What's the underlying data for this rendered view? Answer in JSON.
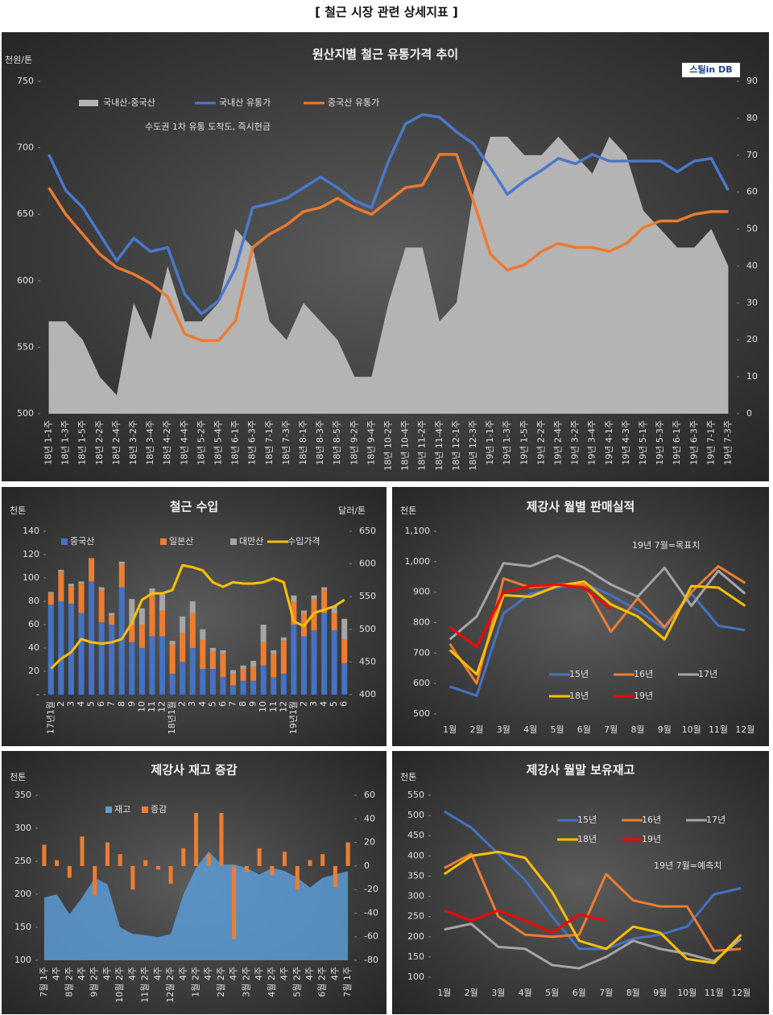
{
  "page_title": "[ 철근 시장 관련 상세지표 ]",
  "chart_data": [
    {
      "type": "combo",
      "title": "원산지별 철근 유통가격 추이",
      "y_label": "천원/톤",
      "annotation": "수도권 1차 유통 도착도, 즉시현금",
      "source_logo": "스틸in DB",
      "categories": [
        "18년 1-1주",
        "18년 1-3주",
        "18년 1-5주",
        "18년 2-2주",
        "18년 2-4주",
        "18년 3-2주",
        "18년 3-4주",
        "18년 4-2주",
        "18년 4-4주",
        "18년 5-2주",
        "18년 5-4주",
        "18년 6-1주",
        "18년 6-3주",
        "18년 7-1주",
        "18년 7-3주",
        "18년 8-1주",
        "18년 8-3주",
        "18년 8-5주",
        "18년 9-2주",
        "18년 9-4주",
        "18년 10-2주",
        "18년 10-4주",
        "18년 11-2주",
        "18년 11-4주",
        "18년 12-1주",
        "18년 12-3주",
        "19년 1-1주",
        "19년 1-3주",
        "19년 1-5주",
        "19년 2-2주",
        "19년 2-4주",
        "19년 3-2주",
        "19년 3-4주",
        "19년 4-1주",
        "19년 4-3주",
        "19년 5-1주",
        "19년 5-3주",
        "19년 6-1주",
        "19년 6-3주",
        "19년 7-1주",
        "19년 7-3주"
      ],
      "series": [
        {
          "name": "국내산-중국산",
          "kind": "area",
          "axis": "y2",
          "color": "#b4b4b4",
          "values": [
            25,
            25,
            20,
            10,
            5,
            30,
            20,
            40,
            25,
            25,
            30,
            50,
            45,
            25,
            20,
            30,
            25,
            20,
            10,
            10,
            30,
            45,
            45,
            25,
            30,
            60,
            75,
            75,
            70,
            70,
            75,
            70,
            65,
            75,
            70,
            55,
            50,
            45,
            45,
            50,
            40
          ]
        },
        {
          "name": "국내산 유통가",
          "kind": "line",
          "color": "#4a78cc",
          "values": [
            695,
            668,
            655,
            635,
            615,
            632,
            622,
            625,
            590,
            575,
            585,
            610,
            655,
            658,
            662,
            670,
            678,
            670,
            660,
            655,
            690,
            718,
            725,
            723,
            712,
            703,
            685,
            665,
            675,
            683,
            692,
            688,
            695,
            690,
            690,
            690,
            690,
            682,
            690,
            692,
            668
          ]
        },
        {
          "name": "중국산 유통가",
          "kind": "line",
          "color": "#ec7a30",
          "values": [
            670,
            650,
            635,
            620,
            610,
            605,
            598,
            588,
            560,
            555,
            555,
            570,
            625,
            635,
            642,
            652,
            655,
            662,
            655,
            650,
            660,
            670,
            672,
            695,
            695,
            660,
            620,
            608,
            612,
            622,
            628,
            625,
            625,
            622,
            628,
            640,
            645,
            645,
            650,
            652,
            652
          ]
        }
      ],
      "ylim": [
        500,
        750
      ],
      "yticks": [
        500,
        550,
        600,
        650,
        700,
        750
      ],
      "y2lim": [
        0,
        90
      ],
      "y2ticks": [
        0,
        10,
        20,
        30,
        40,
        50,
        60,
        70,
        80,
        90
      ],
      "grid": false
    },
    {
      "type": "combo",
      "title": "철근 수입",
      "y_label": "천톤",
      "y2_label": "달러/톤",
      "categories": [
        "17년1월",
        "2",
        "3",
        "4",
        "5",
        "6",
        "7",
        "8",
        "9",
        "10",
        "11",
        "12",
        "18년1월",
        "2",
        "3",
        "4",
        "5",
        "6",
        "7",
        "8",
        "9",
        "10",
        "11",
        "12",
        "19년1월",
        "2",
        "3",
        "4",
        "5",
        "6"
      ],
      "series": [
        {
          "name": "중국산",
          "kind": "stack",
          "color": "#4472c4",
          "values": [
            77,
            80,
            78,
            70,
            97,
            62,
            60,
            92,
            45,
            40,
            50,
            50,
            18,
            28,
            40,
            22,
            22,
            15,
            8,
            12,
            12,
            25,
            15,
            18,
            60,
            50,
            55,
            70,
            55,
            27
          ]
        },
        {
          "name": "일본산",
          "kind": "stack",
          "color": "#ed7d31",
          "values": [
            10,
            25,
            15,
            25,
            20,
            28,
            8,
            20,
            15,
            20,
            35,
            22,
            25,
            25,
            30,
            25,
            15,
            20,
            10,
            10,
            12,
            20,
            20,
            28,
            20,
            20,
            27,
            20,
            15,
            20
          ]
        },
        {
          "name": "대만산",
          "kind": "stack",
          "color": "#a5a5a5",
          "values": [
            1,
            2,
            2,
            2,
            0,
            2,
            2,
            2,
            22,
            14,
            6,
            14,
            3,
            14,
            10,
            9,
            3,
            3,
            3,
            3,
            5,
            15,
            3,
            3,
            5,
            2,
            3,
            2,
            6,
            18
          ]
        },
        {
          "name": "수입가격",
          "kind": "line",
          "axis": "y2",
          "color": "#ffc000",
          "values": [
            440,
            455,
            465,
            485,
            480,
            478,
            480,
            485,
            510,
            545,
            555,
            555,
            560,
            598,
            595,
            590,
            572,
            565,
            572,
            570,
            570,
            572,
            578,
            572,
            512,
            505,
            525,
            530,
            535,
            545
          ]
        }
      ],
      "ylim": [
        0,
        140
      ],
      "yticks": [
        {
          "value": 0,
          "label": "-"
        },
        20,
        40,
        60,
        80,
        100,
        120,
        140
      ],
      "y2lim": [
        400,
        650
      ],
      "y2ticks": [
        400,
        450,
        500,
        550,
        600,
        650
      ],
      "grid": false
    },
    {
      "type": "line",
      "title": "제강사 월별 판매실적",
      "y_label": "천톤",
      "annotation": "19년 7월=목표치",
      "categories": [
        "1월",
        "2월",
        "3월",
        "4월",
        "5월",
        "6월",
        "7월",
        "8월",
        "9월",
        "10월",
        "11월",
        "12월"
      ],
      "series": [
        {
          "name": "15년",
          "color": "#4472c4",
          "values": [
            590,
            560,
            830,
            895,
            915,
            930,
            890,
            840,
            780,
            895,
            790,
            775
          ]
        },
        {
          "name": "16년",
          "color": "#ed7d31",
          "values": [
            730,
            600,
            945,
            915,
            925,
            925,
            770,
            880,
            785,
            900,
            985,
            930
          ]
        },
        {
          "name": "17년",
          "color": "#a5a5a5",
          "values": [
            745,
            820,
            995,
            985,
            1020,
            980,
            925,
            885,
            980,
            855,
            970,
            895
          ]
        },
        {
          "name": "18년",
          "color": "#ffc000",
          "values": [
            710,
            630,
            890,
            885,
            920,
            935,
            860,
            820,
            745,
            920,
            915,
            855
          ]
        },
        {
          "name": "19년",
          "color": "#ff0000",
          "values": [
            785,
            720,
            900,
            920,
            925,
            915,
            845,
            null,
            null,
            null,
            null,
            null
          ]
        }
      ],
      "ylim": [
        500,
        1100
      ],
      "yticks": [
        500,
        600,
        700,
        800,
        900,
        {
          "value": 1000,
          "label": "1,000"
        },
        {
          "value": 1100,
          "label": "1,100"
        }
      ],
      "grid": false
    },
    {
      "type": "combo",
      "title": "제강사 재고 증감",
      "y_label": "천톤",
      "categories": [
        "7월 1주",
        "4주",
        "8월 2주",
        "4주",
        "9월 2주",
        "4주",
        "10월 2주",
        "4주",
        "11월 2주",
        "4주",
        "12월 2주",
        "4주",
        "1월 2주",
        "4주",
        "2월 2주",
        "4주",
        "3월 2주",
        "4주",
        "4월 2주",
        "4주",
        "5월 2주",
        "4주",
        "6월 2주",
        "4주",
        "7월 1주"
      ],
      "series": [
        {
          "name": "재고",
          "kind": "area",
          "color": "#5b9bd5",
          "values": [
            195,
            200,
            170,
            195,
            225,
            215,
            150,
            140,
            138,
            135,
            140,
            200,
            240,
            265,
            245,
            245,
            240,
            230,
            240,
            235,
            225,
            210,
            225,
            230,
            235
          ]
        },
        {
          "name": "증감",
          "kind": "bar",
          "axis": "y2",
          "color": "#ed7d31",
          "values": [
            18,
            5,
            -10,
            25,
            -25,
            20,
            10,
            -20,
            5,
            -3,
            -15,
            15,
            45,
            10,
            45,
            -62,
            -5,
            15,
            -8,
            12,
            -20,
            5,
            10,
            -18,
            20
          ]
        }
      ],
      "ylim": [
        100,
        350
      ],
      "yticks": [
        100,
        150,
        200,
        250,
        300,
        350
      ],
      "y2lim": [
        -80,
        60
      ],
      "y2ticks": [
        -80,
        -60,
        -40,
        -20,
        0,
        20,
        40,
        60
      ],
      "grid": false
    },
    {
      "type": "line",
      "title": "제강사 월말 보유재고",
      "y_label": "천톤",
      "annotation": "19년 7월=예측치",
      "categories": [
        "1월",
        "2월",
        "3월",
        "4월",
        "5월",
        "6월",
        "7월",
        "8월",
        "9월",
        "10월",
        "11월",
        "12월"
      ],
      "series": [
        {
          "name": "15년",
          "color": "#4472c4",
          "values": [
            510,
            470,
            405,
            340,
            250,
            170,
            170,
            195,
            205,
            225,
            305,
            320
          ]
        },
        {
          "name": "16년",
          "color": "#ed7d31",
          "values": [
            370,
            405,
            250,
            205,
            200,
            205,
            355,
            290,
            275,
            275,
            165,
            170
          ]
        },
        {
          "name": "17년",
          "color": "#a5a5a5",
          "values": [
            218,
            232,
            175,
            170,
            130,
            122,
            150,
            190,
            170,
            158,
            140,
            195
          ]
        },
        {
          "name": "18년",
          "color": "#ffc000",
          "values": [
            355,
            400,
            410,
            395,
            310,
            190,
            170,
            225,
            210,
            145,
            135,
            205
          ]
        },
        {
          "name": "19년",
          "color": "#ff0000",
          "values": [
            265,
            240,
            265,
            240,
            210,
            255,
            240,
            null,
            null,
            null,
            null,
            null
          ]
        }
      ],
      "ylim": [
        100,
        550
      ],
      "yticks": [
        100,
        150,
        200,
        250,
        300,
        350,
        400,
        450,
        500,
        550
      ],
      "grid": false
    }
  ]
}
